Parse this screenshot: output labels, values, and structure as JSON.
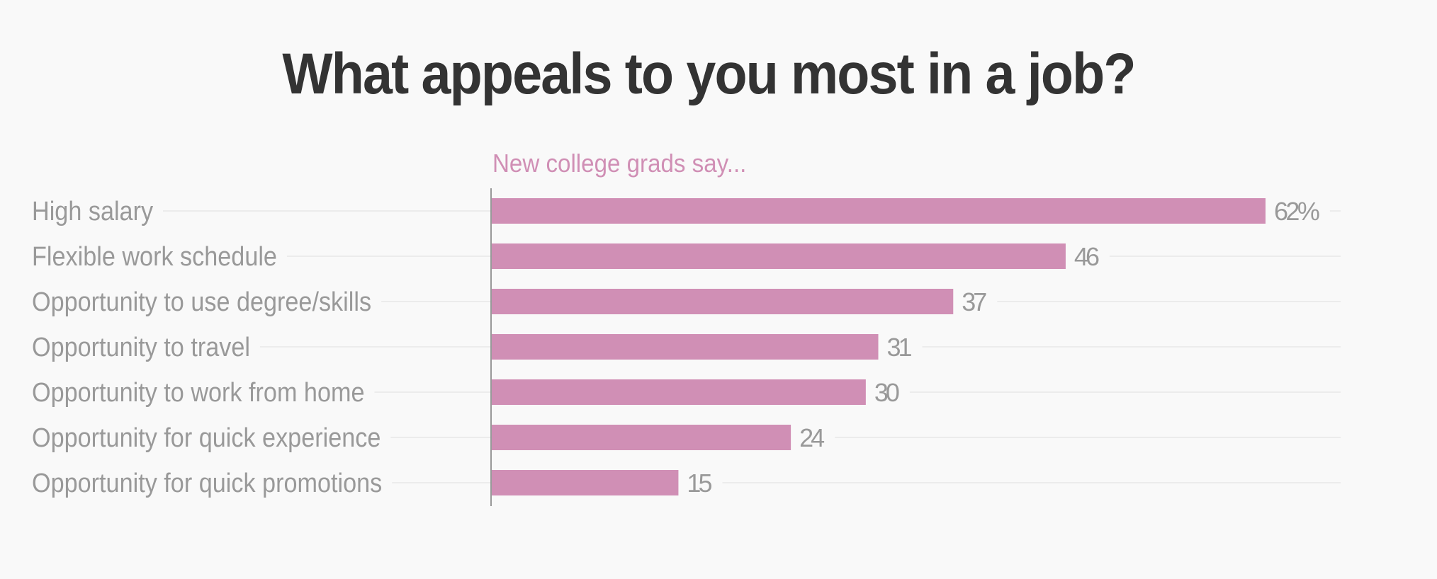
{
  "chart_data": {
    "type": "bar",
    "orientation": "horizontal",
    "title": "What appeals to you most in a job?",
    "subtitle": "New college grads say...",
    "xlabel": "",
    "ylabel": "",
    "unit": "%",
    "categories": [
      "High salary",
      "Flexible work schedule",
      "Opportunity to use degree/skills",
      "Opportunity to travel",
      "Opportunity to work from home",
      "Opportunity for quick experience",
      "Opportunity for quick promotions"
    ],
    "values": [
      62,
      46,
      37,
      31,
      30,
      24,
      15
    ],
    "value_labels": [
      "62%",
      "46",
      "37",
      "31",
      "30",
      "24",
      "15"
    ],
    "xlim": [
      0,
      68
    ],
    "grid": true,
    "legend": "none"
  },
  "colors": {
    "bar": "#d08fb5",
    "subtitle": "#d08fb5",
    "title": "#333333",
    "label": "#999999",
    "grid": "#ececec",
    "axis": "#999999",
    "background": "#f9f9f9"
  }
}
